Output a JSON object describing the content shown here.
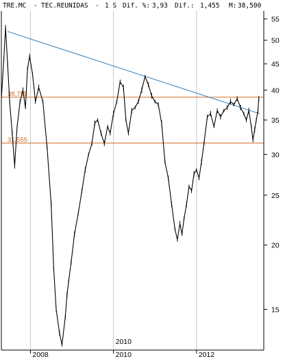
{
  "header": {
    "ticker": "TRE.MC",
    "name": "TEC.REUNIDAS",
    "period": "1 S",
    "dif_pct_label": "Dif. %:",
    "dif_pct": "3,93",
    "dif_label": "Dif.:",
    "dif": "1,455",
    "m_label": "M:",
    "m": "38,500"
  },
  "colors": {
    "price": "#000000",
    "trendline": "#2a7ab8",
    "levels": "#d2691e",
    "grid": "#c8c8c8",
    "frame": "#000000"
  },
  "chart_data": {
    "type": "line",
    "scale": "log",
    "ylim": [
      12.5,
      57
    ],
    "xlim": [
      2007.3,
      2013.62
    ],
    "y_ticks": [
      15,
      20,
      25,
      30,
      35,
      40,
      45,
      50,
      55
    ],
    "y_tick_labels": [
      "15",
      "20",
      "25",
      "30",
      "35",
      "40",
      "45",
      "50",
      "55"
    ],
    "x_ticks": [
      2008,
      2010,
      2012
    ],
    "x_tick_labels": [
      "2008",
      "2010",
      "2012"
    ],
    "x_top_marker": "2010",
    "grid": true,
    "series": [
      {
        "x": [
          2007.3,
          2007.36,
          2007.4,
          2007.45,
          2007.5,
          2007.56,
          2007.62,
          2007.68,
          2007.75,
          2007.82,
          2007.88,
          2007.93,
          2007.98,
          2008.05,
          2008.12,
          2008.2,
          2008.3,
          2008.4,
          2008.5,
          2008.56,
          2008.62,
          2008.7,
          2008.76,
          2008.84,
          2008.88,
          2008.92,
          2008.98,
          2009.06,
          2009.15,
          2009.24,
          2009.32,
          2009.4,
          2009.48,
          2009.55,
          2009.62,
          2009.7,
          2009.78,
          2009.86,
          2009.92,
          2010.0,
          2010.08,
          2010.16,
          2010.24,
          2010.3,
          2010.36,
          2010.44,
          2010.52,
          2010.6,
          2010.68,
          2010.76,
          2010.84,
          2010.92,
          2011.0,
          2011.08,
          2011.16,
          2011.24,
          2011.32,
          2011.4,
          2011.48,
          2011.54,
          2011.6,
          2011.65,
          2011.7,
          2011.76,
          2011.82,
          2011.88,
          2011.94,
          2012.0,
          2012.06,
          2012.12,
          2012.18,
          2012.26,
          2012.34,
          2012.42,
          2012.5,
          2012.58,
          2012.66,
          2012.74,
          2012.82,
          2012.9,
          2012.98,
          2013.06,
          2013.14,
          2013.2,
          2013.26,
          2013.32,
          2013.36,
          2013.4,
          2013.44,
          2013.48,
          2013.5
        ],
        "y": [
          38.5,
          46.0,
          53.0,
          45.0,
          38.0,
          33.0,
          28.5,
          34.0,
          38.0,
          40.0,
          37.0,
          44.0,
          46.5,
          43.0,
          38.0,
          40.5,
          38.0,
          31.0,
          24.0,
          18.0,
          15.0,
          13.5,
          12.8,
          14.5,
          16.0,
          17.0,
          18.5,
          21.0,
          23.0,
          25.5,
          28.0,
          30.0,
          31.5,
          34.5,
          35.0,
          33.0,
          31.5,
          34.0,
          33.0,
          36.0,
          38.0,
          41.5,
          40.5,
          35.0,
          33.0,
          36.5,
          37.0,
          38.0,
          40.0,
          42.5,
          41.0,
          39.0,
          38.0,
          37.5,
          34.5,
          29.0,
          27.0,
          24.0,
          21.5,
          20.5,
          22.0,
          21.0,
          22.5,
          24.0,
          26.0,
          25.5,
          27.5,
          28.0,
          27.0,
          29.0,
          31.5,
          35.5,
          36.0,
          34.0,
          36.5,
          35.5,
          36.5,
          37.0,
          38.0,
          37.5,
          38.5,
          37.0,
          36.0,
          35.0,
          36.5,
          34.0,
          32.0,
          33.5,
          35.0,
          36.5,
          38.5
        ]
      }
    ],
    "annotations": {
      "trendline": {
        "x": [
          2007.45,
          2013.52
        ],
        "y": [
          52.0,
          36.0
        ]
      },
      "levels": [
        {
          "label": "38,755",
          "value": 38.755
        },
        {
          "label": "31,555",
          "value": 31.555
        }
      ]
    }
  }
}
